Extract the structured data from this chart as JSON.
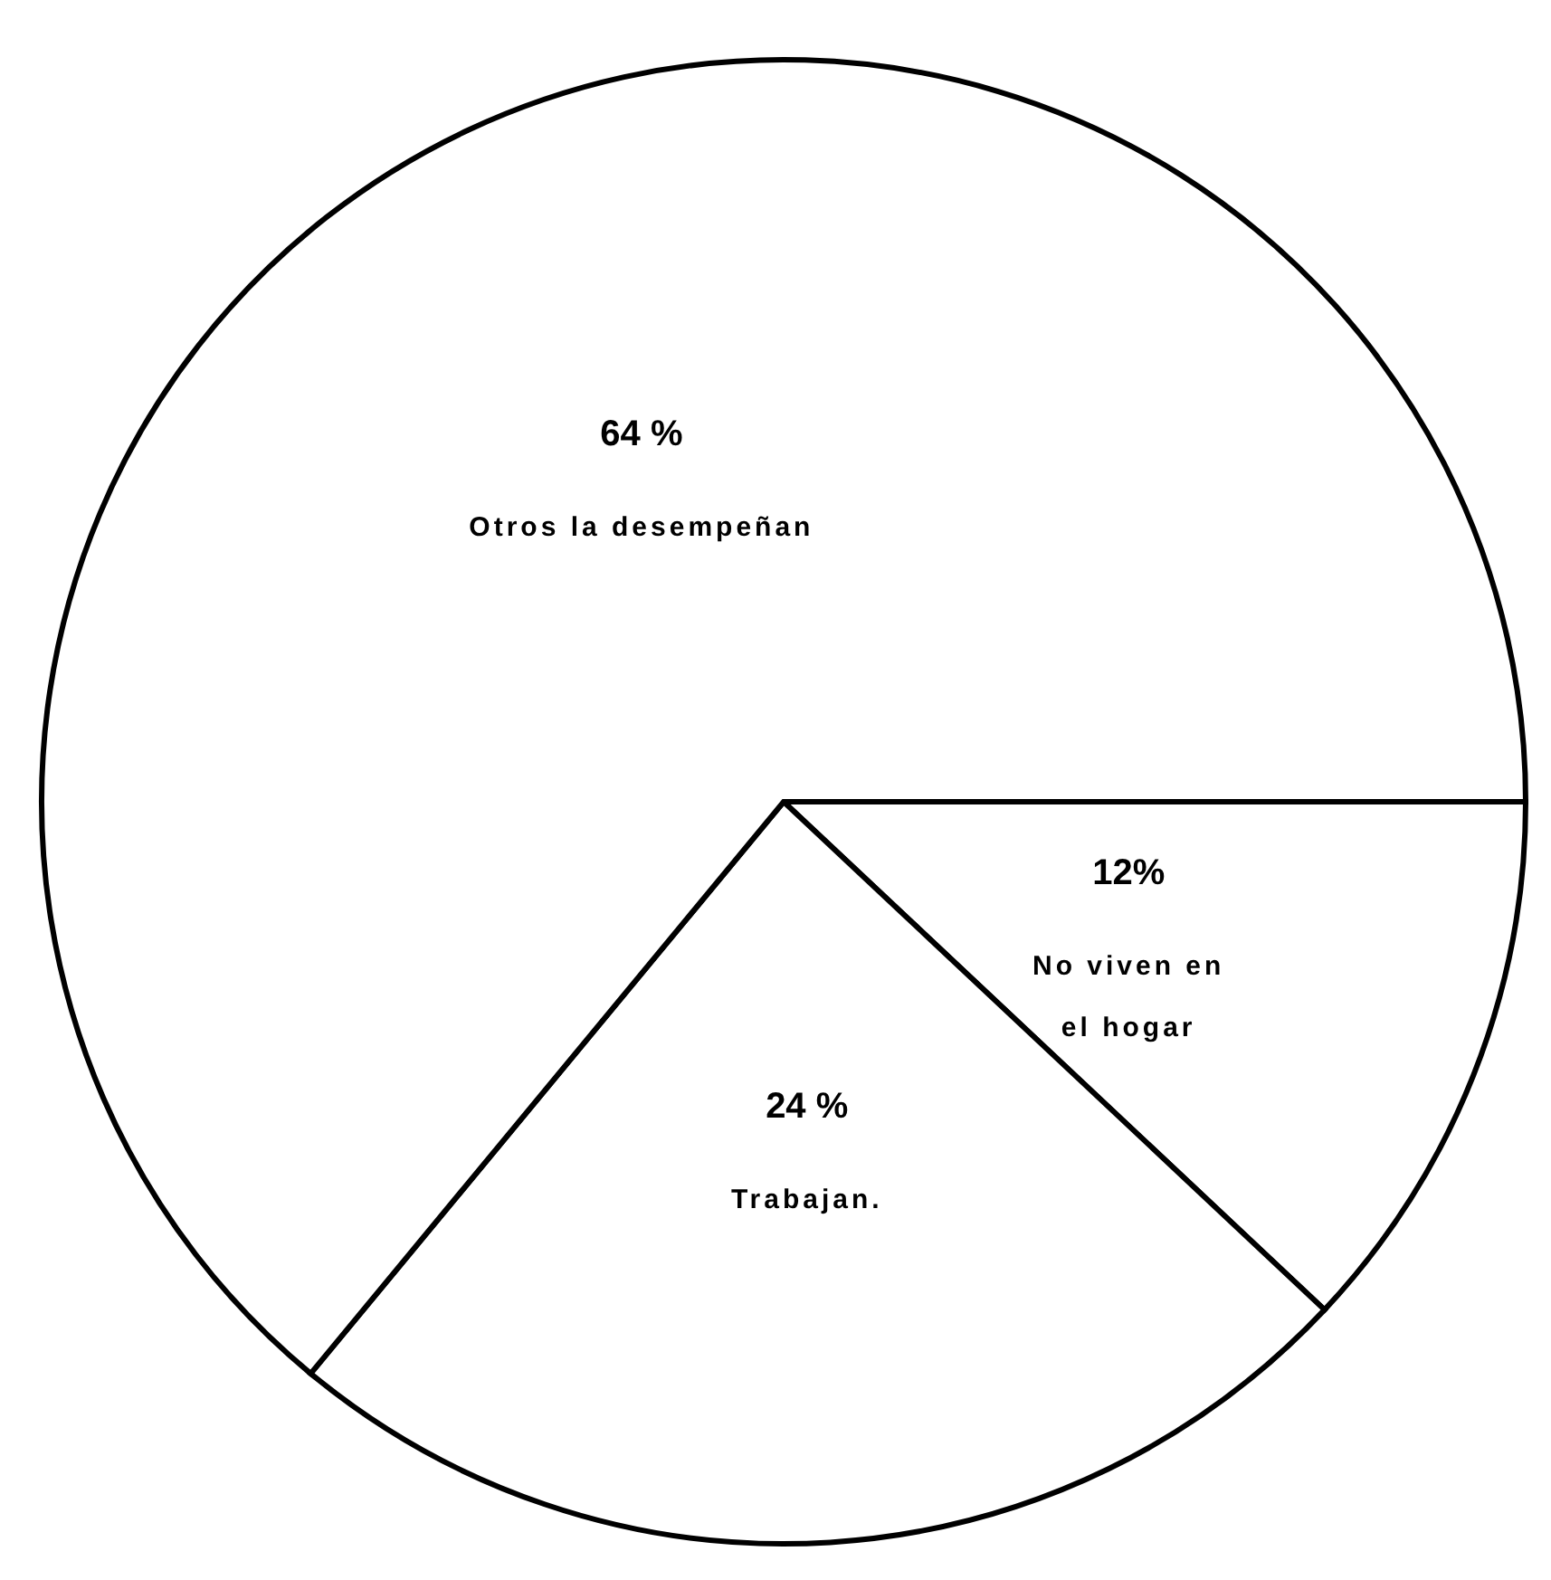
{
  "chart_data": {
    "type": "pie",
    "categories": [
      "No viven en el hogar",
      "Trabajan.",
      "Otros la desempeñan"
    ],
    "values": [
      12,
      24,
      64
    ],
    "colors": [
      "#ffffff",
      "#ffffff",
      "#ffffff"
    ],
    "value_labels": [
      "12%",
      "24 %",
      "64 %"
    ]
  }
}
